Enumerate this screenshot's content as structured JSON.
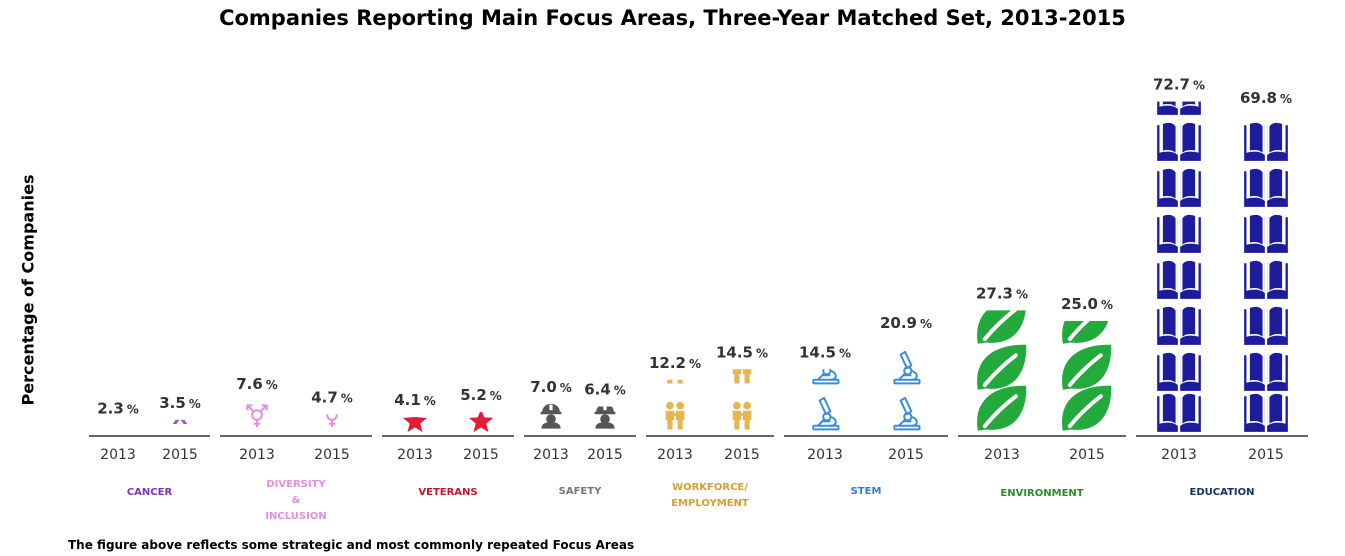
{
  "title": "Companies Reporting Main Focus Areas, Three-Year Matched Set, 2013-2015",
  "footnote": "The figure above reflects some strategic and most commonly repeated Focus Areas",
  "chart_data": {
    "type": "bar",
    "ylabel": "Percentage of Companies",
    "xlabel": "",
    "years": [
      "2013",
      "2015"
    ],
    "value_suffix": "%",
    "groups": [
      {
        "category": [
          "CANCER"
        ],
        "color": "#9b4fd6",
        "icon": "ribbon-icon",
        "values": [
          2.3,
          3.5
        ],
        "labels": [
          "2.3",
          "3.5"
        ]
      },
      {
        "category": [
          "DIVERSITY",
          "&",
          "INCLUSION"
        ],
        "color": "#e58de2",
        "icon": "gender-symbol-icon",
        "values": [
          7.6,
          4.7
        ],
        "labels": [
          "7.6",
          "4.7"
        ]
      },
      {
        "category": [
          "VETERANS"
        ],
        "color": "#e31b35",
        "icon": "medal-icon",
        "values": [
          4.1,
          5.2
        ],
        "labels": [
          "4.1",
          "5.2"
        ]
      },
      {
        "category": [
          "SAFETY"
        ],
        "color": "#555555",
        "icon": "hard-hat-worker-icon",
        "values": [
          7.0,
          6.4
        ],
        "labels": [
          "7.0",
          "6.4"
        ]
      },
      {
        "category": [
          "WORKFORCE/",
          "EMPLOYMENT"
        ],
        "color": "#e6b552",
        "icon": "people-icon",
        "values": [
          12.2,
          14.5
        ],
        "labels": [
          "12.2",
          "14.5"
        ]
      },
      {
        "category": [
          "STEM"
        ],
        "color": "#3a8fd9",
        "icon": "microscope-icon",
        "values": [
          14.5,
          20.9
        ],
        "labels": [
          "14.5",
          "20.9"
        ]
      },
      {
        "category": [
          "ENVIRONMENT"
        ],
        "color": "#23a93c",
        "icon": "leaf-icon",
        "values": [
          27.3,
          25.0
        ],
        "labels": [
          "27.3",
          "25.0"
        ]
      },
      {
        "category": [
          "EDUCATION"
        ],
        "color": "#1c1c9c",
        "icon": "book-icon",
        "values": [
          72.7,
          69.8
        ],
        "labels": [
          "72.7",
          "69.8"
        ]
      }
    ],
    "category_colors": {
      "CANCER": "#7a35b5",
      "DIVERSITY": "#e58de2",
      "VETERANS": "#d0112b",
      "SAFETY": "#777777",
      "WORKFORCE": "#d4a035",
      "STEM": "#2e7fd1",
      "ENVIRONMENT": "#2e8a2a",
      "EDUCATION": "#16306b"
    }
  }
}
